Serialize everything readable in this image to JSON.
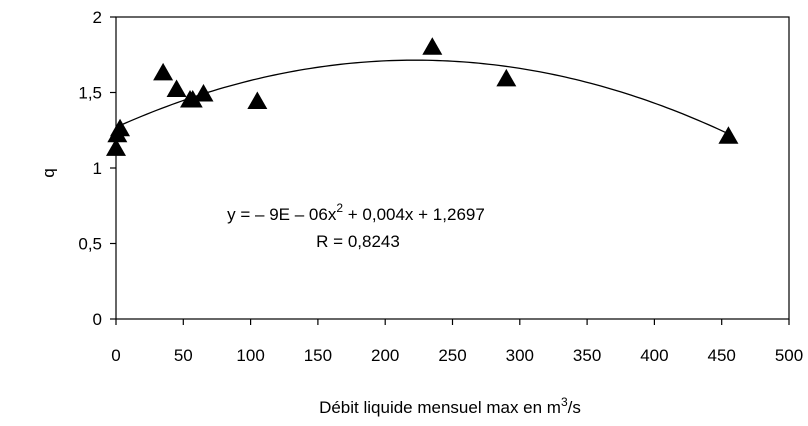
{
  "chart_data": {
    "type": "scatter",
    "xlabel": "Débit liquide mensuel max en m",
    "xlabel_sup": "3",
    "xlabel_suffix": "/s",
    "ylabel": "b",
    "xlim": [
      0,
      500
    ],
    "ylim": [
      0,
      2
    ],
    "x_ticks": [
      0,
      50,
      100,
      150,
      200,
      250,
      300,
      350,
      400,
      450,
      500
    ],
    "y_ticks": [
      0,
      0.5,
      1,
      1.5,
      2
    ],
    "x_tick_labels": [
      "0",
      "50",
      "100",
      "150",
      "200",
      "250",
      "300",
      "350",
      "400",
      "450",
      "500"
    ],
    "y_tick_labels": [
      "0",
      "0,5",
      "1",
      "1,5",
      "2"
    ],
    "grid": false,
    "marker": "triangle",
    "marker_color": "#000000",
    "points": [
      {
        "x": 0,
        "y": 1.13
      },
      {
        "x": 1,
        "y": 1.22
      },
      {
        "x": 3,
        "y": 1.26
      },
      {
        "x": 35,
        "y": 1.63
      },
      {
        "x": 45,
        "y": 1.52
      },
      {
        "x": 55,
        "y": 1.45
      },
      {
        "x": 57,
        "y": 1.45
      },
      {
        "x": 65,
        "y": 1.49
      },
      {
        "x": 105,
        "y": 1.44
      },
      {
        "x": 235,
        "y": 1.8
      },
      {
        "x": 290,
        "y": 1.59
      },
      {
        "x": 455,
        "y": 1.21
      }
    ],
    "trendline": {
      "type": "polynomial",
      "coefficients": [
        -9e-06,
        0.004,
        1.2697
      ],
      "x_range": [
        0,
        455
      ]
    },
    "annotations": {
      "equation_main": "y = – 9E – 06x",
      "equation_sup": "2",
      "equation_rest": " + 0,004x + 1,2697",
      "r_value": "R = 0,8243"
    }
  }
}
